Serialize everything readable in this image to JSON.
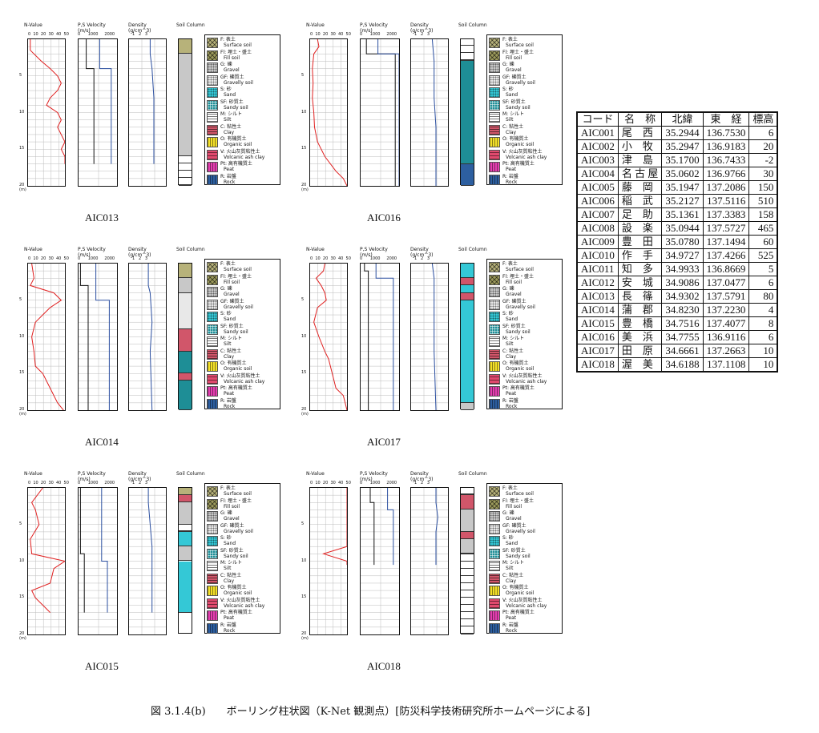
{
  "panel_headers": {
    "nvalue": "N-Value",
    "nvalue_ticks": "0  10  20  30  40  50",
    "ps": "P,S Velocity\n(m/s)",
    "ps_ticks": "0      1000     2000",
    "density": "Density\n(g/cm^3)",
    "density_ticks": "1   2   3",
    "soil": "Soil Column"
  },
  "depth_labels": [
    "5",
    "10",
    "15",
    "20"
  ],
  "depth_unit": "(m)",
  "legend": [
    {
      "jp": "F: 表土",
      "en": "Surface soil",
      "color": "#b7b27a",
      "pattern": "x"
    },
    {
      "jp": "Fl: 埋土・盛土",
      "en": "Fill soil",
      "color": "#9c9a5c",
      "pattern": "x"
    },
    {
      "jp": "G: 礫",
      "en": "Gravel",
      "color": "#c8c8c8",
      "pattern": "dots"
    },
    {
      "jp": "GF: 礫質土",
      "en": "Gravelly soil",
      "color": "#e8e8e8",
      "pattern": "circles"
    },
    {
      "jp": "S: 砂",
      "en": "Sand",
      "color": "#34c8d6",
      "pattern": "fine"
    },
    {
      "jp": "SF: 砂質土",
      "en": "Sandy soil",
      "color": "#1e8e96",
      "pattern": "grid"
    },
    {
      "jp": "M: シルト",
      "en": "Silt",
      "color": "#ffffff",
      "pattern": "hlines"
    },
    {
      "jp": "C: 粘性土",
      "en": "Clay",
      "color": "#d1566a",
      "pattern": "hlines"
    },
    {
      "jp": "O: 有機質土",
      "en": "Organic soil",
      "color": "#f3e02a",
      "pattern": "vlines"
    },
    {
      "jp": "V: 火山灰質粘性土",
      "en": "Volcanic ash clay",
      "color": "#e04a6e",
      "pattern": "wave"
    },
    {
      "jp": "Pt: 高有機質土",
      "en": "Peat",
      "color": "#e43fb0",
      "pattern": "vlines"
    },
    {
      "jp": "R: 岩盤",
      "en": "Rock",
      "color": "#2d5fa0",
      "pattern": "vlines"
    }
  ],
  "panels": [
    {
      "site": "AIC013",
      "nvalue": [
        [
          3,
          0
        ],
        [
          3,
          1.5
        ],
        [
          18,
          3
        ],
        [
          30,
          4
        ],
        [
          40,
          5
        ],
        [
          45,
          6
        ],
        [
          40,
          7
        ],
        [
          30,
          8
        ],
        [
          25,
          9
        ],
        [
          40,
          10
        ],
        [
          45,
          11
        ],
        [
          40,
          12
        ],
        [
          50,
          14
        ],
        [
          45,
          15
        ],
        [
          50,
          16
        ],
        [
          50,
          17
        ]
      ],
      "vel": [
        [
          400,
          0
        ],
        [
          400,
          4
        ],
        [
          800,
          4
        ],
        [
          800,
          17
        ]
      ],
      "vel2": [
        [
          1100,
          0
        ],
        [
          1100,
          4
        ],
        [
          1700,
          4
        ],
        [
          1700,
          17
        ]
      ],
      "den": [
        [
          1.8,
          0
        ],
        [
          1.8,
          2
        ],
        [
          1.9,
          4
        ],
        [
          2.0,
          8
        ],
        [
          2.0,
          12
        ],
        [
          2.0,
          17
        ]
      ],
      "soil": [
        [
          "#b7b27a",
          0,
          2
        ],
        [
          "#c8c8c8",
          2,
          16
        ],
        [
          "#ffffff",
          16,
          20
        ]
      ]
    },
    {
      "site": "AIC016",
      "nvalue": [
        [
          10,
          0
        ],
        [
          12,
          1
        ],
        [
          5,
          2
        ],
        [
          3,
          4
        ],
        [
          4,
          6
        ],
        [
          3,
          8
        ],
        [
          5,
          10
        ],
        [
          6,
          12
        ],
        [
          10,
          14
        ],
        [
          20,
          16
        ],
        [
          35,
          18
        ],
        [
          45,
          19
        ],
        [
          50,
          20
        ]
      ],
      "vel": [
        [
          300,
          0
        ],
        [
          300,
          2
        ],
        [
          1800,
          2
        ],
        [
          1800,
          20
        ]
      ],
      "vel2": [
        [
          900,
          0
        ],
        [
          900,
          2
        ],
        [
          2000,
          2
        ],
        [
          2000,
          20
        ]
      ],
      "den": [
        [
          1.8,
          0
        ],
        [
          1.9,
          3
        ],
        [
          1.9,
          8
        ],
        [
          2.0,
          12
        ],
        [
          2.0,
          20
        ]
      ],
      "soil": [
        [
          "#ffffff",
          0,
          3
        ],
        [
          "#1e8e96",
          3,
          17
        ],
        [
          "#2d5fa0",
          17,
          20
        ]
      ]
    },
    {
      "site": "AIC014",
      "nvalue": [
        [
          5,
          0
        ],
        [
          8,
          2
        ],
        [
          3,
          3
        ],
        [
          35,
          4
        ],
        [
          45,
          5
        ],
        [
          30,
          6
        ],
        [
          20,
          7
        ],
        [
          10,
          8
        ],
        [
          5,
          10
        ],
        [
          8,
          12
        ],
        [
          10,
          14
        ],
        [
          20,
          15
        ],
        [
          30,
          17
        ],
        [
          40,
          19
        ],
        [
          48,
          20
        ]
      ],
      "vel": [
        [
          100,
          0
        ],
        [
          100,
          3
        ],
        [
          500,
          3
        ],
        [
          500,
          20
        ]
      ],
      "vel2": [
        [
          900,
          0
        ],
        [
          900,
          5
        ],
        [
          1600,
          5
        ],
        [
          1600,
          20
        ]
      ],
      "den": [
        [
          1.7,
          0
        ],
        [
          1.7,
          3
        ],
        [
          1.8,
          4
        ],
        [
          1.9,
          8
        ],
        [
          1.8,
          12
        ],
        [
          1.9,
          20
        ]
      ],
      "soil": [
        [
          "#b7b27a",
          0,
          2
        ],
        [
          "#c8c8c8",
          2,
          4
        ],
        [
          "#e8e8e8",
          4,
          9
        ],
        [
          "#d1566a",
          9,
          12
        ],
        [
          "#1e8e96",
          12,
          15
        ],
        [
          "#d1566a",
          15,
          16
        ],
        [
          "#1e8e96",
          16,
          20
        ]
      ]
    },
    {
      "site": "AIC017",
      "nvalue": [
        [
          20,
          0
        ],
        [
          18,
          1
        ],
        [
          8,
          2
        ],
        [
          15,
          3
        ],
        [
          20,
          4
        ],
        [
          22,
          5
        ],
        [
          10,
          6
        ],
        [
          5,
          8
        ],
        [
          12,
          10
        ],
        [
          20,
          12
        ],
        [
          25,
          13
        ],
        [
          30,
          15
        ],
        [
          35,
          17
        ],
        [
          45,
          18
        ],
        [
          50,
          20
        ]
      ],
      "vel": [
        [
          200,
          0
        ],
        [
          200,
          1
        ],
        [
          400,
          1
        ],
        [
          400,
          20
        ]
      ],
      "vel2": [
        [
          800,
          0
        ],
        [
          800,
          2
        ],
        [
          1700,
          2
        ],
        [
          1700,
          20
        ]
      ],
      "den": [
        [
          1.8,
          0
        ],
        [
          1.9,
          2
        ],
        [
          1.9,
          6
        ],
        [
          1.9,
          12
        ],
        [
          2.0,
          20
        ]
      ],
      "soil": [
        [
          "#34c8d6",
          0,
          2
        ],
        [
          "#d1566a",
          2,
          3
        ],
        [
          "#34c8d6",
          3,
          4
        ],
        [
          "#d1566a",
          4,
          5
        ],
        [
          "#34c8d6",
          5,
          19
        ],
        [
          "#c8c8c8",
          19,
          20
        ]
      ]
    },
    {
      "site": "AIC015",
      "nvalue": [
        [
          20,
          0
        ],
        [
          5,
          2
        ],
        [
          10,
          3
        ],
        [
          15,
          5
        ],
        [
          3,
          7
        ],
        [
          5,
          9
        ],
        [
          50,
          10
        ],
        [
          35,
          11
        ],
        [
          30,
          13
        ],
        [
          5,
          14
        ],
        [
          10,
          15
        ],
        [
          20,
          16
        ],
        [
          30,
          17
        ]
      ],
      "vel": [
        [
          100,
          0
        ],
        [
          100,
          9
        ],
        [
          300,
          9
        ],
        [
          300,
          17
        ]
      ],
      "vel2": [
        [
          1200,
          0
        ],
        [
          1200,
          10
        ],
        [
          1500,
          10
        ],
        [
          1500,
          17
        ]
      ],
      "den": [
        [
          1.7,
          0
        ],
        [
          1.7,
          2
        ],
        [
          1.8,
          5
        ],
        [
          1.9,
          8
        ],
        [
          1.9,
          17
        ]
      ],
      "soil": [
        [
          "#b7b27a",
          0,
          1
        ],
        [
          "#d1566a",
          1,
          2
        ],
        [
          "#c8c8c8",
          2,
          5
        ],
        [
          "#ffffff",
          5,
          6
        ],
        [
          "#34c8d6",
          6,
          8
        ],
        [
          "#c8c8c8",
          8,
          10
        ],
        [
          "#34c8d6",
          10,
          17
        ]
      ]
    },
    {
      "site": "AIC018",
      "nvalue": [
        [
          50,
          0
        ],
        [
          50,
          8
        ],
        [
          18,
          9
        ],
        [
          50,
          10
        ],
        [
          50,
          10.5
        ]
      ],
      "vel": [
        [
          500,
          0
        ],
        [
          500,
          2
        ],
        [
          700,
          2
        ],
        [
          700,
          10.5
        ]
      ],
      "vel2": [
        [
          1400,
          0
        ],
        [
          1400,
          3
        ],
        [
          1700,
          3
        ],
        [
          1700,
          10.5
        ]
      ],
      "den": [
        [
          2.0,
          0
        ],
        [
          2.0,
          2
        ],
        [
          2.1,
          4
        ],
        [
          2.0,
          6
        ],
        [
          2.0,
          10.5
        ]
      ],
      "soil": [
        [
          "#ffffff",
          0,
          1
        ],
        [
          "#d1566a",
          1,
          3
        ],
        [
          "#c8c8c8",
          3,
          6
        ],
        [
          "#d1566a",
          6,
          7
        ],
        [
          "#c8c8c8",
          7,
          9
        ],
        [
          "#ffffff",
          9,
          20
        ]
      ]
    }
  ],
  "stations": {
    "headers": [
      "コード",
      "名　称",
      "北緯",
      "東　経",
      "標高"
    ],
    "rows": [
      [
        "AIC001",
        "尾　西",
        "35.2944",
        "136.7530",
        "6"
      ],
      [
        "AIC002",
        "小　牧",
        "35.2947",
        "136.9183",
        "20"
      ],
      [
        "AIC003",
        "津　島",
        "35.1700",
        "136.7433",
        "-2"
      ],
      [
        "AIC004",
        "名 古 屋",
        "35.0602",
        "136.9766",
        "30"
      ],
      [
        "AIC005",
        "藤　岡",
        "35.1947",
        "137.2086",
        "150"
      ],
      [
        "AIC006",
        "稲　武",
        "35.2127",
        "137.5116",
        "510"
      ],
      [
        "AIC007",
        "足　助",
        "35.1361",
        "137.3383",
        "158"
      ],
      [
        "AIC008",
        "設　楽",
        "35.0944",
        "137.5727",
        "465"
      ],
      [
        "AIC009",
        "豊　田",
        "35.0780",
        "137.1494",
        "60"
      ],
      [
        "AIC010",
        "作　手",
        "34.9727",
        "137.4266",
        "525"
      ],
      [
        "AIC011",
        "知　多",
        "34.9933",
        "136.8669",
        "5"
      ],
      [
        "AIC012",
        "安　城",
        "34.9086",
        "137.0477",
        "6"
      ],
      [
        "AIC013",
        "長　篠",
        "34.9302",
        "137.5791",
        "80"
      ],
      [
        "AIC014",
        "蒲　郡",
        "34.8230",
        "137.2230",
        "4"
      ],
      [
        "AIC015",
        "豊　橋",
        "34.7516",
        "137.4077",
        "8"
      ],
      [
        "AIC016",
        "美　浜",
        "34.7755",
        "136.9116",
        "6"
      ],
      [
        "AIC017",
        "田　原",
        "34.6661",
        "137.2663",
        "10"
      ],
      [
        "AIC018",
        "渥　美",
        "34.6188",
        "137.1108",
        "10"
      ]
    ]
  },
  "caption": "図 3.1.4(b)　　ボーリング柱状図（K-Net 観測点）[防災科学技術研究所ホームページによる]"
}
